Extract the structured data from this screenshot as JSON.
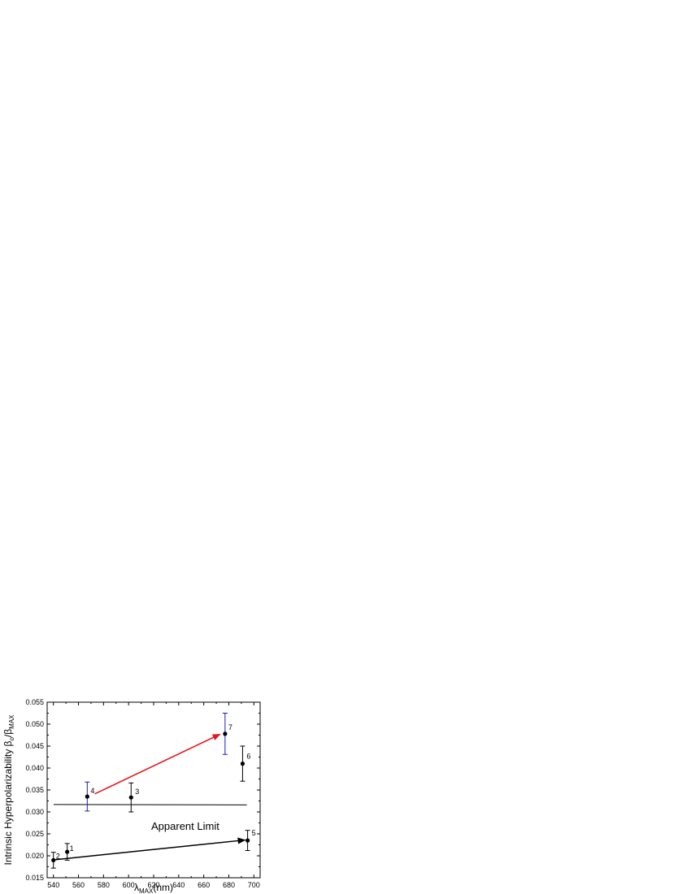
{
  "chart_data": {
    "type": "scatter",
    "xlabel": {
      "main": "λ",
      "sub": "MAX",
      "suffix": "(nm)"
    },
    "ylabel": {
      "main": "Intrinsic Hyperpolarizability β",
      "sub1": "o",
      "mid": "/β",
      "sub2": "MAX"
    },
    "xlim": [
      535,
      705
    ],
    "ylim": [
      0.015,
      0.055
    ],
    "x_ticks": [
      540,
      560,
      580,
      600,
      620,
      640,
      660,
      680,
      700
    ],
    "y_ticks": [
      0.015,
      0.02,
      0.025,
      0.03,
      0.035,
      0.04,
      0.045,
      0.05,
      0.055
    ],
    "x_tick_labels": [
      "540",
      "560",
      "580",
      "600",
      "620",
      "640",
      "660",
      "680",
      "700"
    ],
    "y_tick_labels": [
      "0.015",
      "0.020",
      "0.025",
      "0.030",
      "0.035",
      "0.040",
      "0.045",
      "0.050",
      "0.055"
    ],
    "points": [
      {
        "label": "1",
        "x": 551,
        "y": 0.0209,
        "err": 0.0019,
        "err_color": "#000000"
      },
      {
        "label": "2",
        "x": 540,
        "y": 0.019,
        "err": 0.0018,
        "err_color": "#000000"
      },
      {
        "label": "3",
        "x": 602,
        "y": 0.0333,
        "err": 0.0033,
        "err_color": "#000000"
      },
      {
        "label": "4",
        "x": 567,
        "y": 0.0335,
        "err": 0.0033,
        "err_color": "#1a1ab3"
      },
      {
        "label": "5",
        "x": 695,
        "y": 0.0235,
        "err": 0.0023,
        "err_color": "#000000"
      },
      {
        "label": "6",
        "x": 691,
        "y": 0.041,
        "err": 0.004,
        "err_color": "#000000"
      },
      {
        "label": "7",
        "x": 677,
        "y": 0.0478,
        "err": 0.0047,
        "err_color": "#1a1ab3"
      }
    ],
    "apparent_limit": {
      "label": "Apparent Limit",
      "y_start": 0.0317,
      "y_end": 0.0316,
      "x_start": 535,
      "x_end": 695
    },
    "arrows": [
      {
        "from": [
          541,
          0.0191
        ],
        "to": [
          693,
          0.0236
        ],
        "color": "#000000"
      },
      {
        "from": [
          573,
          0.0341
        ],
        "to": [
          673,
          0.0477
        ],
        "color": "#e8141b"
      }
    ],
    "colors": {
      "points": "#000000",
      "blue_errorbars": "#1a1ab3",
      "red_arrow": "#e8141b"
    }
  }
}
